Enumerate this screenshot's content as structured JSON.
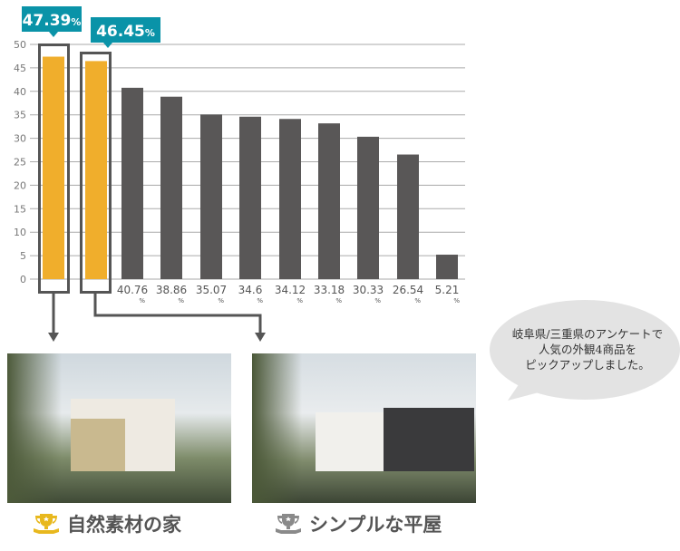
{
  "chart_data": {
    "type": "bar",
    "ylim": [
      0,
      50
    ],
    "yticks": [
      0,
      5,
      10,
      15,
      20,
      25,
      30,
      35,
      40,
      45,
      50
    ],
    "grid": true,
    "values": [
      47.39,
      46.45,
      40.76,
      38.86,
      35.07,
      34.6,
      34.12,
      33.18,
      30.33,
      26.54,
      5.21
    ],
    "labels": [
      "47.39",
      "46.45",
      "40.76",
      "38.86",
      "35.07",
      "34.6",
      "34.12",
      "33.18",
      "30.33",
      "26.54",
      "5.21"
    ],
    "unit": "%",
    "highlighted": [
      0,
      1
    ],
    "colors": {
      "highlight": "#f0ae2c",
      "normal": "#595757",
      "callout": "#0a93a8",
      "grid": "#aaaaaa"
    }
  },
  "bubble": {
    "lines": [
      "岐阜県/三重県のアンケートで",
      "人気の外観4商品を",
      "ピックアップしました。"
    ]
  },
  "products": [
    {
      "name": "自然素材の家",
      "icon": "trophy-gold-icon",
      "color": "#e8b81e"
    },
    {
      "name": "シンプルな平屋",
      "icon": "trophy-silver-icon",
      "color": "#8a8a8a"
    }
  ]
}
